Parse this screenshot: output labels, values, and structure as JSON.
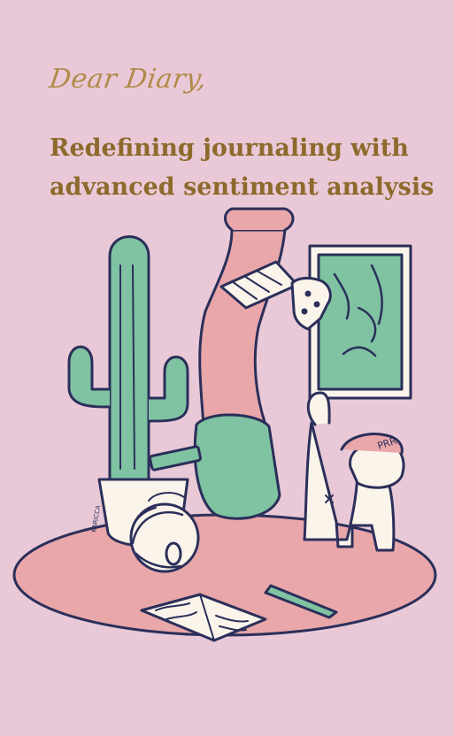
{
  "header": {
    "brand_text": "Dear Diary,",
    "headline_line1": "Redefining journaling with",
    "headline_line2": "advanced sentiment analysis"
  },
  "illustration": {
    "signature_text": "KARICCA",
    "cat_sound_text": "PRR"
  },
  "colors": {
    "background": "#e9c9d7",
    "brand": "#b08a4a",
    "headline": "#8d6a2c",
    "outline": "#2b2f5a",
    "green": "#7fc3a2",
    "pink": "#e9a7aa",
    "white": "#fbf4ea"
  }
}
